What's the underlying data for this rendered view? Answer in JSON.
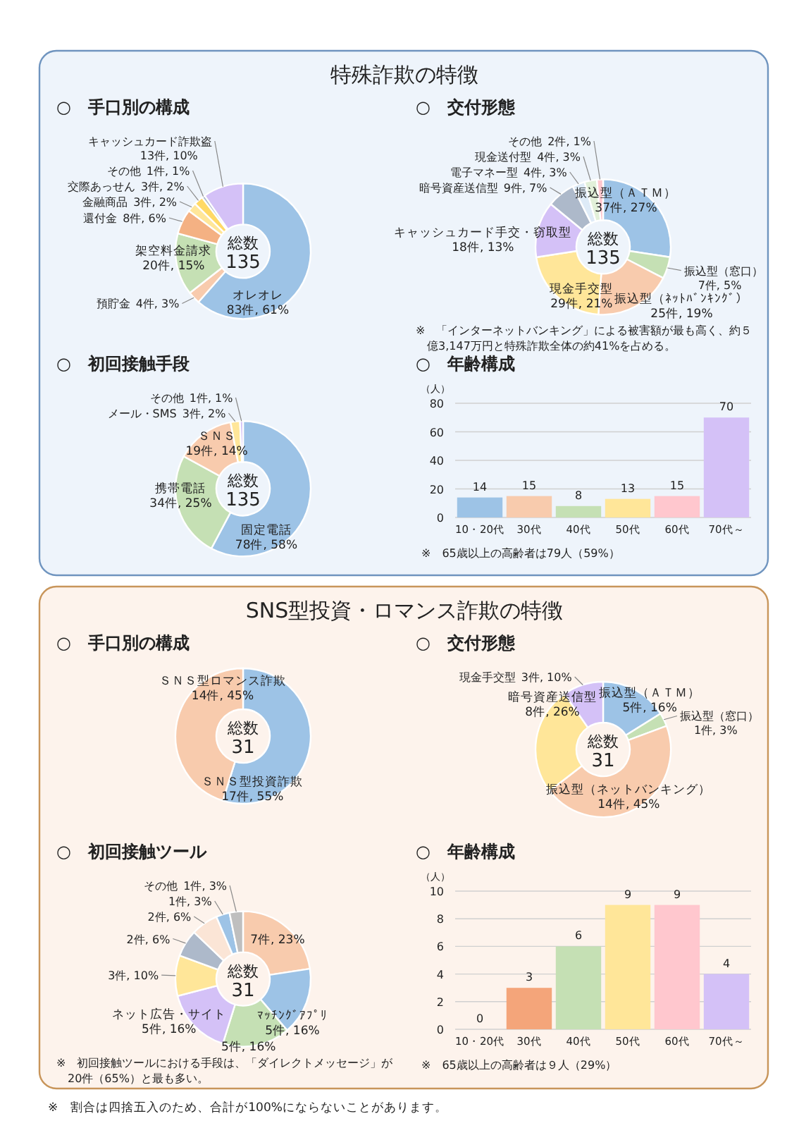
{
  "chart_data": [
    {
      "type": "donut",
      "subtitle": "特殊詐欺の特徴",
      "title": "○　手口別の構成",
      "categories": [
        "オレオレ",
        "預貯金",
        "架空料金請求",
        "還付金",
        "金融商品",
        "交際あっせん",
        "その他",
        "キャッシュカード詐欺盗"
      ],
      "values": [
        83,
        4,
        20,
        8,
        3,
        3,
        1,
        13
      ],
      "value_labels": [
        "83件, 61%",
        "4件, 3%",
        "20件, 15%",
        "8件, 6%",
        "3件, 2%",
        "3件, 2%",
        "1件, 1%",
        "13件, 10%"
      ],
      "colors": [
        "#9dc3e6",
        "#f8cbad",
        "#c5e0b4",
        "#f4b183",
        "#ffe699",
        "#ffd966",
        "#adb9ca",
        "#d4c1f7"
      ],
      "annotations": [
        "総数",
        "135"
      ]
    },
    {
      "type": "donut",
      "title": "○　交付形態",
      "categories": [
        "振込型（ＡＴＭ）",
        "振込型（窓口）",
        "振込型（ﾈｯﾄﾊﾞﾝｷﾝｸﾞ）",
        "現金手交型",
        "キャッシュカード手交・窃取型",
        "暗号資産送信型",
        "電子マネー型",
        "現金送付型",
        "その他"
      ],
      "values": [
        37,
        7,
        25,
        29,
        18,
        9,
        4,
        4,
        2
      ],
      "value_labels": [
        "37件, 27%",
        "7件, 5%",
        "25件, 19%",
        "29件, 21%",
        "18件, 13%",
        "9件, 7%",
        "4件, 3%",
        "4件, 3%",
        "2件, 1%"
      ],
      "colors": [
        "#9dc3e6",
        "#c5e0b4",
        "#f8cbad",
        "#ffe699",
        "#d4c1f7",
        "#adb9ca",
        "#deebf7",
        "#e2f0d9",
        "#ffc7ce"
      ],
      "annotations": [
        "総数",
        "135",
        "※　「インターネットバンキング」による被害額が最も高く、約５億3,147万円と特殊詐欺全体の約41%を占める。"
      ]
    },
    {
      "type": "donut",
      "title": "○　初回接触手段",
      "categories": [
        "固定電話",
        "携帯電話",
        "ＳＮＳ",
        "メール・SMS",
        "その他"
      ],
      "values": [
        78,
        34,
        19,
        3,
        1
      ],
      "value_labels": [
        "78件, 58%",
        "34件, 25%",
        "19件, 14%",
        "3件, 2%",
        "1件, 1%"
      ],
      "colors": [
        "#9dc3e6",
        "#c5e0b4",
        "#f8cbad",
        "#ffe699",
        "#d4c1f7"
      ],
      "annotations": [
        "総数",
        "135"
      ]
    },
    {
      "type": "bar",
      "title": "○　年齢構成",
      "ylabel": "（人）",
      "categories": [
        "10・20代",
        "30代",
        "40代",
        "50代",
        "60代",
        "70代～"
      ],
      "values": [
        14,
        15,
        8,
        13,
        15,
        70
      ],
      "colors": [
        "#9dc3e6",
        "#f8cbad",
        "#c5e0b4",
        "#ffe699",
        "#ffc7ce",
        "#d4c1f7"
      ],
      "data_labels": true,
      "ylim": [
        0,
        80
      ],
      "yticks": [
        0,
        20,
        40,
        60,
        80
      ],
      "grid": "y",
      "annotations": [
        "※　65歳以上の高齢者は79人（59%）"
      ]
    },
    {
      "type": "donut",
      "subtitle": "SNS型投資・ロマンス詐欺の特徴",
      "title": "○　手口別の構成",
      "categories": [
        "ＳＮＳ型投資詐欺",
        "ＳＮＳ型ロマンス詐欺"
      ],
      "values": [
        17,
        14
      ],
      "value_labels": [
        "17件, 55%",
        "14件, 45%"
      ],
      "colors": [
        "#9dc3e6",
        "#f8cbad"
      ],
      "annotations": [
        "総数",
        "31"
      ]
    },
    {
      "type": "donut",
      "title": "○　交付形態",
      "categories": [
        "振込型（ＡＴＭ）",
        "振込型（窓口）",
        "振込型（ネットバンキング）",
        "暗号資産送信型",
        "現金手交型"
      ],
      "values": [
        5,
        1,
        14,
        8,
        3
      ],
      "value_labels": [
        "5件, 16%",
        "1件, 3%",
        "14件, 45%",
        "8件, 26%",
        "3件, 10%"
      ],
      "colors": [
        "#9dc3e6",
        "#c5e0b4",
        "#f8cbad",
        "#ffe699",
        "#d4c1f7"
      ],
      "annotations": [
        "総数",
        "31"
      ]
    },
    {
      "type": "donut",
      "title": "○　初回接触ツール",
      "categories": [
        null,
        "ﾏｯﾁﾝｸﾞｱﾌﾟﾘ",
        null,
        "ネット広告・サイト",
        null,
        null,
        null,
        null,
        "その他"
      ],
      "values": [
        7,
        5,
        5,
        5,
        3,
        2,
        2,
        1,
        1
      ],
      "value_labels": [
        "7件, 23%",
        "5件, 16%",
        "5件, 16%",
        "5件, 16%",
        "3件, 10%",
        "2件, 6%",
        "2件, 6%",
        "1件, 3%",
        "1件, 3%"
      ],
      "colors": [
        "#f8cbad",
        "#9dc3e6",
        "#c5e0b4",
        "#d4c1f7",
        "#ffe699",
        "#adb9ca",
        "#fbe5d6",
        "#9dc3e6",
        "#bfbfbf"
      ],
      "annotations": [
        "総数",
        "31",
        "※　初回接触ツールにおける手段は、「ダイレクトメッセージ」が20件（65%）と最も多い。"
      ]
    },
    {
      "type": "bar",
      "title": "○　年齢構成",
      "ylabel": "（人）",
      "categories": [
        "10・20代",
        "30代",
        "40代",
        "50代",
        "60代",
        "70代～"
      ],
      "values": [
        0,
        3,
        6,
        9,
        9,
        4
      ],
      "colors": [
        "#9dc3e6",
        "#f4a57a",
        "#c5e0b4",
        "#ffe699",
        "#ffc7ce",
        "#d4c1f7"
      ],
      "data_labels": true,
      "ylim": [
        0,
        10
      ],
      "yticks": [
        0,
        2,
        4,
        6,
        8,
        10
      ],
      "grid": "y",
      "annotations": [
        "※　65歳以上の高齢者は９人（29%）"
      ]
    },
    {
      "type": "other",
      "annotations": [
        "※　割合は四捨五入のため、合計が100%にならないことがあります。"
      ]
    }
  ]
}
